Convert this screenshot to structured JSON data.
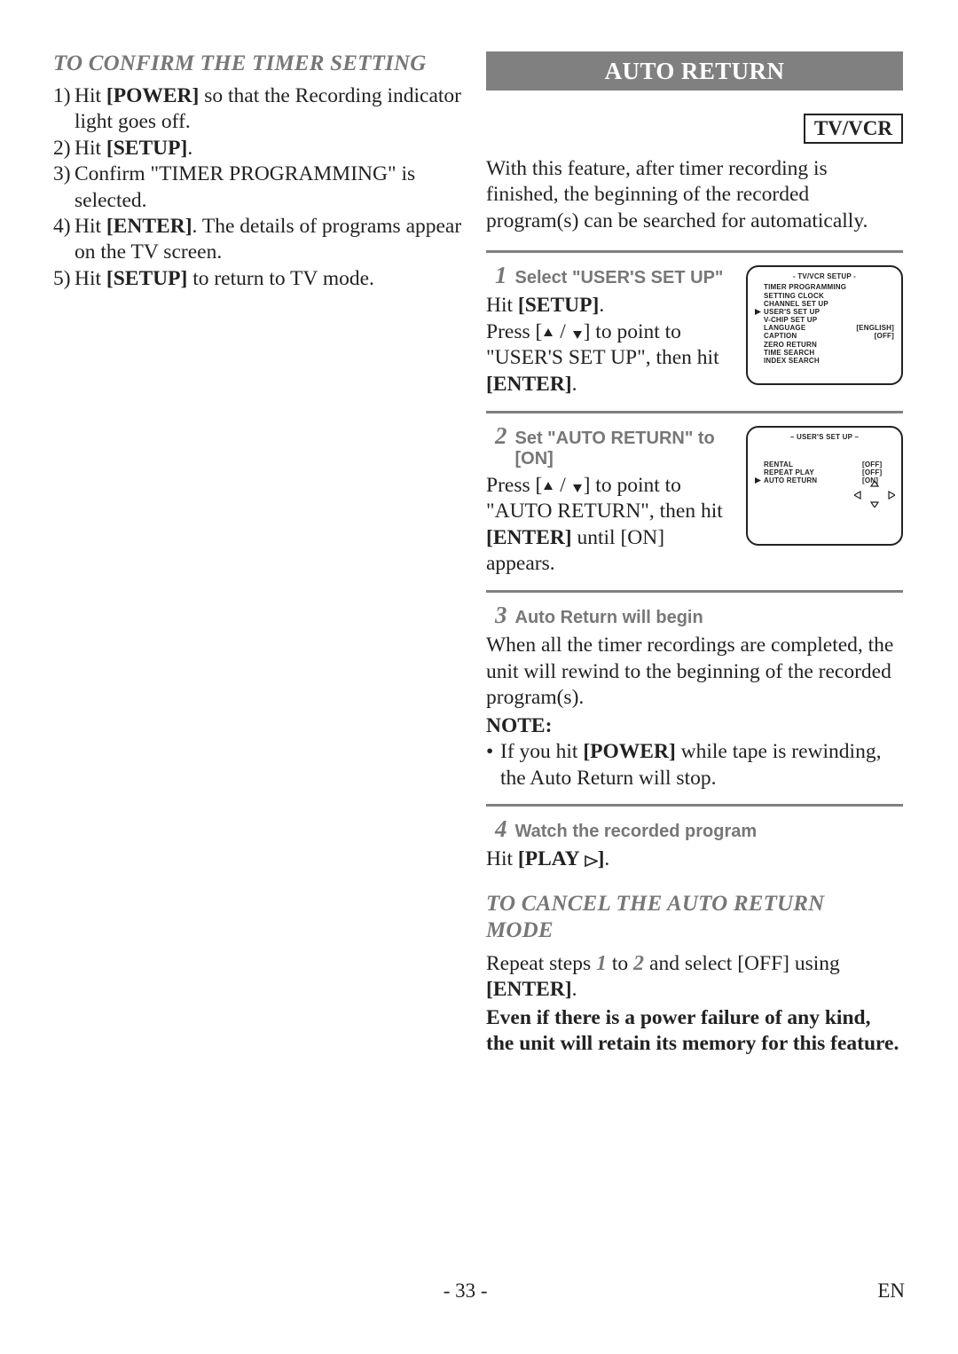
{
  "left": {
    "heading": "TO CONFIRM THE TIMER SETTING",
    "steps": [
      {
        "n": "1)",
        "prefix": "Hit ",
        "bold": "[POWER]",
        "suffix": " so that the Recording indicator light goes off."
      },
      {
        "n": "2)",
        "prefix": "Hit ",
        "bold": "[SETUP]",
        "suffix": "."
      },
      {
        "n": "3)",
        "prefix": "Confirm \"TIMER PROGRAMMING\" is selected.",
        "bold": "",
        "suffix": ""
      },
      {
        "n": "4)",
        "prefix": "Hit ",
        "bold": "[ENTER]",
        "suffix": ". The details of programs appear on the TV screen."
      },
      {
        "n": "5)",
        "prefix": "Hit ",
        "bold": "[SETUP]",
        "suffix": " to return to TV mode."
      }
    ]
  },
  "right": {
    "titlebar": "AUTO RETURN",
    "titlebar_bg": "#808080",
    "badge": "TV/VCR",
    "intro": "With this feature, after timer recording is finished, the beginning of the recorded program(s) can be searched for automatically.",
    "rule_color": "#808080",
    "step1": {
      "num": "1",
      "label": "Select \"USER'S SET UP\"",
      "l1a": "Hit ",
      "l1b": "[SETUP]",
      "l1c": ".",
      "l2a": "Press [",
      "l2b": "] to point to \"USER'S SET UP\", then hit ",
      "l2c": "[ENTER]",
      "l2d": "."
    },
    "screen1": {
      "hdr": "- TV/VCR SETUP -",
      "rows": [
        {
          "sel": false,
          "label": "TIMER PROGRAMMING",
          "val": ""
        },
        {
          "sel": false,
          "label": "SETTING CLOCK",
          "val": ""
        },
        {
          "sel": false,
          "label": "CHANNEL SET UP",
          "val": ""
        },
        {
          "sel": true,
          "label": "USER'S SET UP",
          "val": ""
        },
        {
          "sel": false,
          "label": "V-CHIP SET UP",
          "val": ""
        },
        {
          "sel": false,
          "label": "LANGUAGE",
          "val": "[ENGLISH]"
        },
        {
          "sel": false,
          "label": "CAPTION",
          "val": "[OFF]"
        },
        {
          "sel": false,
          "label": "ZERO RETURN",
          "val": ""
        },
        {
          "sel": false,
          "label": "TIME SEARCH",
          "val": ""
        },
        {
          "sel": false,
          "label": "INDEX SEARCH",
          "val": ""
        }
      ]
    },
    "step2": {
      "num": "2",
      "label": "Set \"AUTO RETURN\" to [ON]",
      "l1a": "Press [",
      "l1b": "] to point to \"AUTO RETURN\", then hit ",
      "l1c": "[ENTER]",
      "l1d": " until [ON] appears."
    },
    "screen2": {
      "hdr": "– USER'S SET UP –",
      "rows": [
        {
          "sel": false,
          "label": "RENTAL",
          "val": "[OFF]"
        },
        {
          "sel": false,
          "label": "REPEAT PLAY",
          "val": "[OFF]"
        },
        {
          "sel": true,
          "label": "AUTO RETURN",
          "val": "[ON]"
        }
      ]
    },
    "step3": {
      "num": "3",
      "label": "Auto Return will begin",
      "body": "When all the timer recordings are completed, the unit will rewind to the beginning of the recorded program(s).",
      "note_label": "NOTE:",
      "note_item_a": "If you hit ",
      "note_item_b": "[POWER]",
      "note_item_c": " while tape is rewinding, the Auto Return will stop."
    },
    "step4": {
      "num": "4",
      "label": "Watch the recorded program",
      "body_a": "Hit ",
      "body_b": "[PLAY",
      "body_c": "]",
      "body_d": "."
    },
    "cancel": {
      "heading1": "TO CANCEL THE AUTO RETURN",
      "heading2": "MODE",
      "l1a": "Repeat steps ",
      "l1n1": "1",
      "l1b": " to ",
      "l1n2": "2 ",
      "l1c": "and select [OFF] using ",
      "l1d": "[ENTER]",
      "l1e": ".",
      "bold1": "Even if there is a power failure of any kind, the unit will retain its memory for this feature."
    }
  },
  "page": {
    "num": "- 33 -",
    "lang": "EN"
  },
  "colors": {
    "gray_text": "#777777",
    "black": "#222222"
  }
}
